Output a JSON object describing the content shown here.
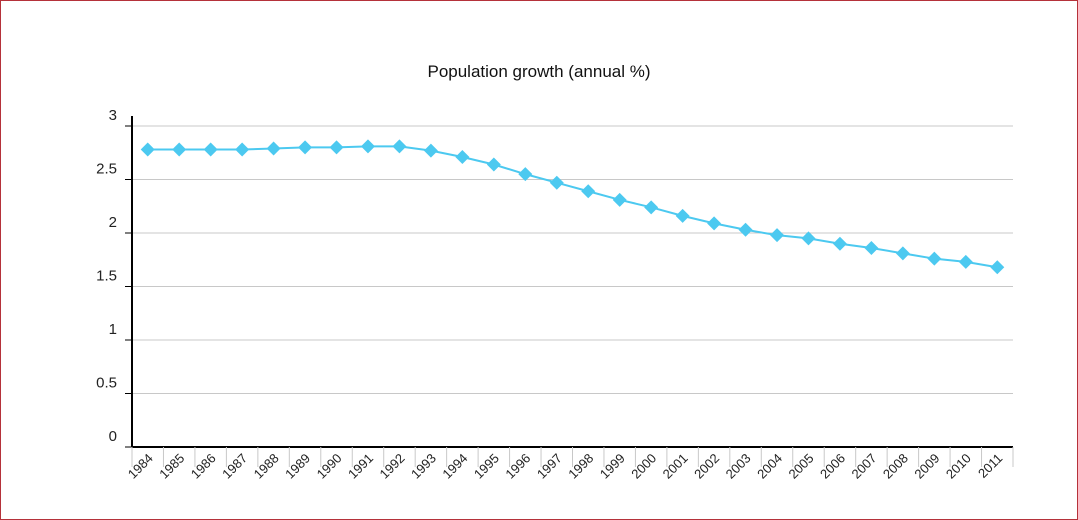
{
  "chart_data": {
    "type": "line",
    "title": "Population growth (annual %)",
    "xlabel": "",
    "ylabel": "",
    "categories": [
      "1984",
      "1985",
      "1986",
      "1987",
      "1988",
      "1989",
      "1990",
      "1991",
      "1992",
      "1993",
      "1994",
      "1995",
      "1996",
      "1997",
      "1998",
      "1999",
      "2000",
      "2001",
      "2002",
      "2003",
      "2004",
      "2005",
      "2006",
      "2007",
      "2008",
      "2009",
      "2010",
      "2011"
    ],
    "series": [
      {
        "values": [
          2.78,
          2.78,
          2.78,
          2.78,
          2.79,
          2.8,
          2.8,
          2.81,
          2.81,
          2.77,
          2.71,
          2.64,
          2.55,
          2.47,
          2.39,
          2.31,
          2.24,
          2.16,
          2.09,
          2.03,
          1.98,
          1.95,
          1.9,
          1.86,
          1.81,
          1.76,
          1.73,
          1.68
        ]
      }
    ],
    "yticks": [
      "0",
      "0.5",
      "1",
      "1.5",
      "2",
      "2.5",
      "3"
    ],
    "ylim": [
      0,
      3
    ],
    "grid": true,
    "legend": "none",
    "series_color": "#4cc9f0",
    "axis_color": "#000000",
    "grid_color": "#c8c8c8",
    "border_color": "#b5323a"
  }
}
